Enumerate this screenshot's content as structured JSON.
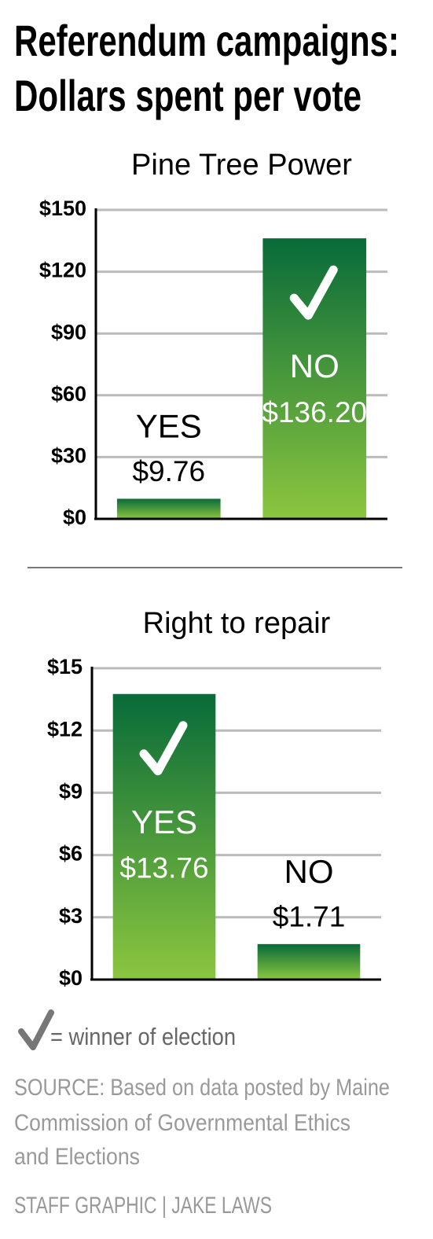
{
  "header": {
    "title_lines": [
      "Referendum campaigns:",
      "Dollars spent per vote"
    ]
  },
  "chart_data": [
    {
      "type": "bar",
      "title": "Pine Tree Power",
      "categories": [
        "YES",
        "NO"
      ],
      "values": [
        9.76,
        136.2
      ],
      "value_labels": [
        "$9.76",
        "$136.20"
      ],
      "winner": [
        false,
        true
      ],
      "gradient": [
        "#086b39",
        "#8cc63f"
      ],
      "ylim": [
        0,
        150
      ],
      "yticks": [
        {
          "value": 0,
          "label": "$0"
        },
        {
          "value": 30,
          "label": "$30"
        },
        {
          "value": 60,
          "label": "$60"
        },
        {
          "value": 90,
          "label": "$90"
        },
        {
          "value": 120,
          "label": "$120"
        },
        {
          "value": 150,
          "label": "$150"
        }
      ],
      "grid": true
    },
    {
      "type": "bar",
      "title": "Right to repair",
      "categories": [
        "YES",
        "NO"
      ],
      "values": [
        13.76,
        1.71
      ],
      "value_labels": [
        "$13.76",
        "$1.71"
      ],
      "winner": [
        true,
        false
      ],
      "gradient": [
        "#086b39",
        "#8cc63f"
      ],
      "ylim": [
        0,
        15
      ],
      "yticks": [
        {
          "value": 0,
          "label": "$0"
        },
        {
          "value": 3,
          "label": "$3"
        },
        {
          "value": 6,
          "label": "$6"
        },
        {
          "value": 9,
          "label": "$9"
        },
        {
          "value": 12,
          "label": "$12"
        },
        {
          "value": 15,
          "label": "$15"
        }
      ],
      "grid": true
    }
  ],
  "legend_note": "= winner of election",
  "source_lines": [
    "SOURCE: Based on data posted by Maine",
    "Commission of Governmental Ethics",
    "and Elections"
  ],
  "credit": "STAFF GRAPHIC | JAKE LAWS"
}
